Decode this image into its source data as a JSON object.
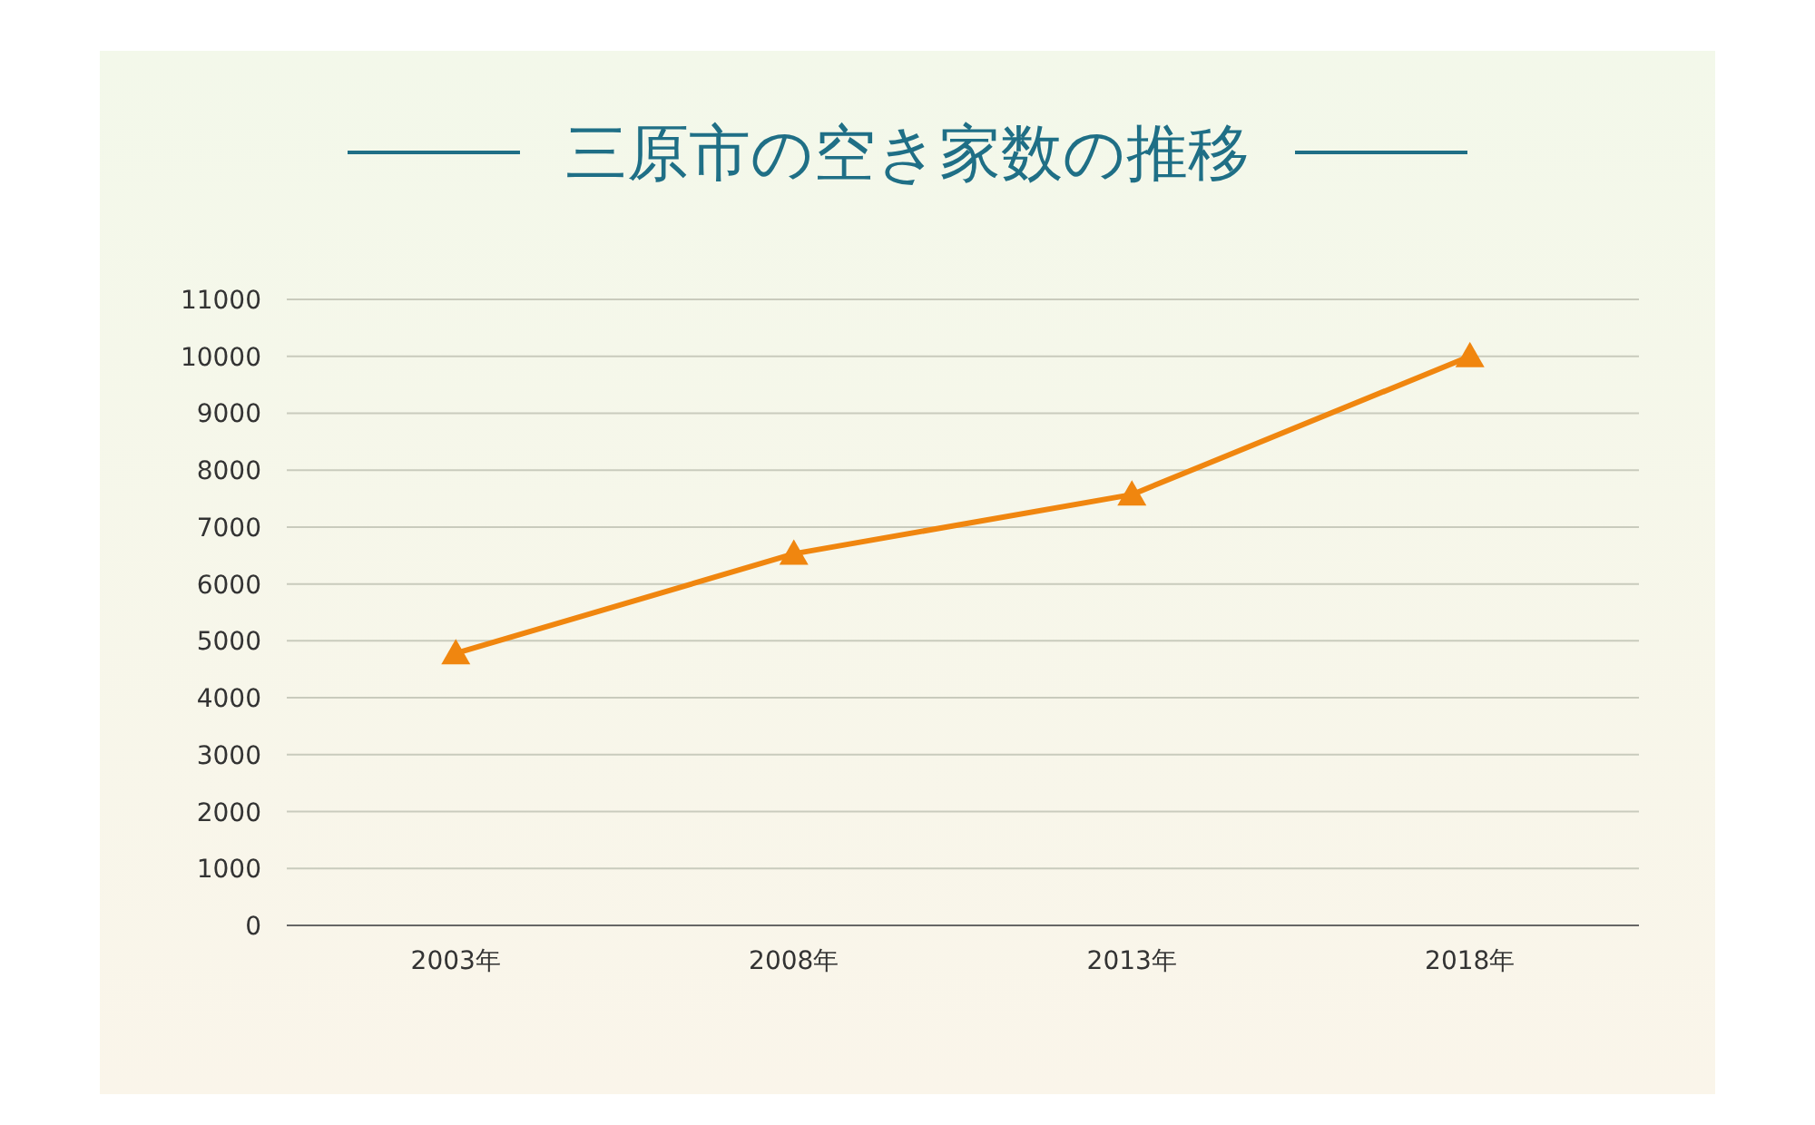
{
  "chart_data": {
    "type": "line",
    "title": "三原市の空き家数の推移",
    "categories": [
      "2003年",
      "2008年",
      "2013年",
      "2018年"
    ],
    "series": [
      {
        "color": "#f0860f",
        "values": [
          4780,
          6530,
          7570,
          10000
        ]
      }
    ],
    "ylim": [
      0,
      11000
    ],
    "yticks": [
      0,
      1000,
      2000,
      3000,
      4000,
      5000,
      6000,
      7000,
      8000,
      9000,
      10000,
      11000
    ],
    "grid": "y",
    "marker": "triangle",
    "line_style": "solid"
  }
}
